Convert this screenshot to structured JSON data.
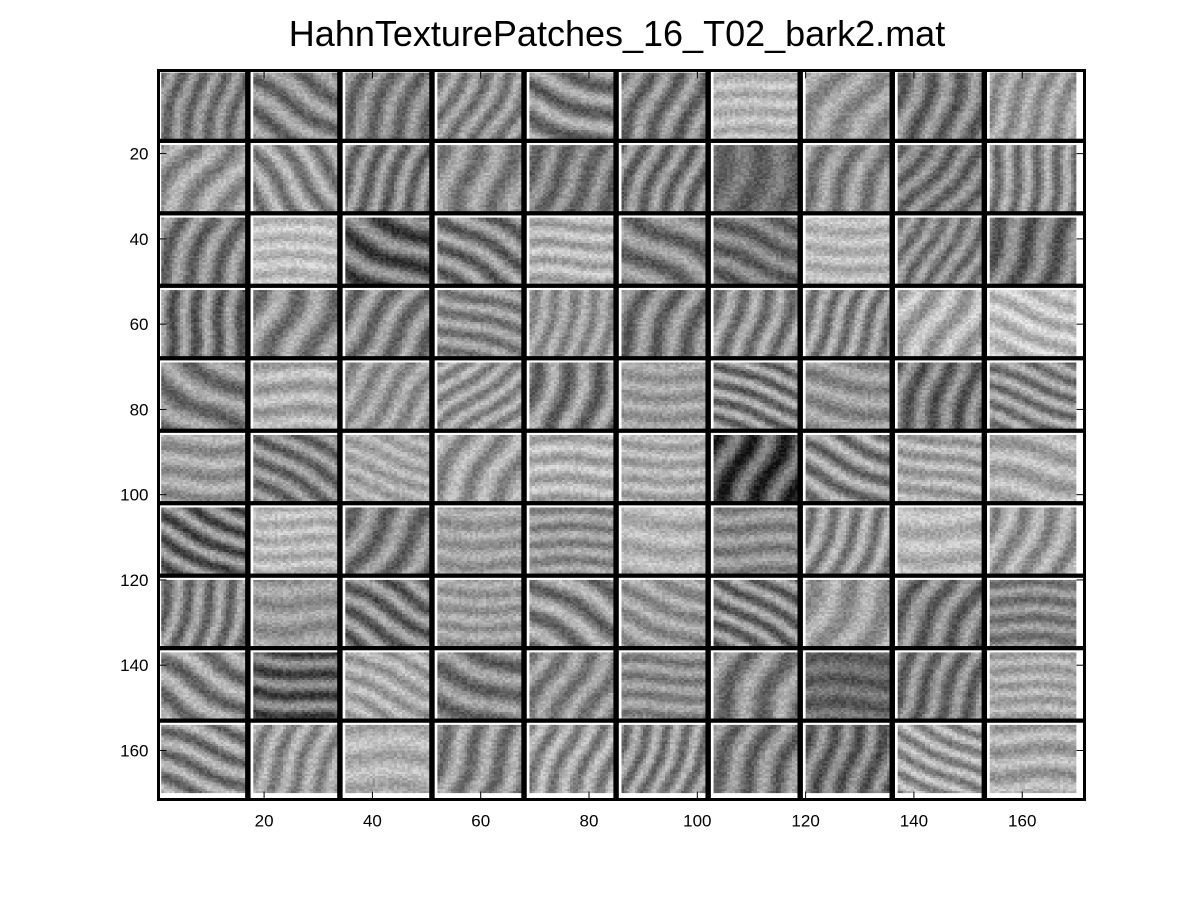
{
  "chart_data": {
    "type": "heatmap",
    "title": "HahnTexturePatches_16_T02_bark2.mat",
    "xlabel": "",
    "ylabel": "",
    "colormap": "gray",
    "grid_rows": 10,
    "grid_cols": 10,
    "patch_size": 16,
    "xlim": [
      0.5,
      171.5
    ],
    "ylim": [
      0.5,
      171.5
    ],
    "y_reversed": true,
    "xticks": [
      20,
      40,
      60,
      80,
      100,
      120,
      140,
      160
    ],
    "yticks": [
      20,
      40,
      60,
      80,
      100,
      120,
      140,
      160
    ],
    "patch_mean_gray": [
      [
        0.5,
        0.52,
        0.5,
        0.55,
        0.52,
        0.5,
        0.72,
        0.6,
        0.48,
        0.62
      ],
      [
        0.6,
        0.58,
        0.5,
        0.55,
        0.48,
        0.5,
        0.42,
        0.55,
        0.48,
        0.55
      ],
      [
        0.5,
        0.75,
        0.4,
        0.5,
        0.7,
        0.5,
        0.45,
        0.72,
        0.52,
        0.45
      ],
      [
        0.48,
        0.55,
        0.52,
        0.55,
        0.6,
        0.5,
        0.55,
        0.55,
        0.68,
        0.75
      ],
      [
        0.52,
        0.68,
        0.6,
        0.6,
        0.52,
        0.62,
        0.52,
        0.58,
        0.45,
        0.55
      ],
      [
        0.62,
        0.5,
        0.66,
        0.62,
        0.7,
        0.68,
        0.3,
        0.55,
        0.66,
        0.68
      ],
      [
        0.45,
        0.72,
        0.5,
        0.62,
        0.58,
        0.7,
        0.55,
        0.58,
        0.72,
        0.62
      ],
      [
        0.52,
        0.6,
        0.48,
        0.62,
        0.55,
        0.6,
        0.5,
        0.62,
        0.48,
        0.52
      ],
      [
        0.55,
        0.4,
        0.66,
        0.5,
        0.55,
        0.56,
        0.52,
        0.4,
        0.48,
        0.66
      ],
      [
        0.55,
        0.6,
        0.7,
        0.55,
        0.6,
        0.55,
        0.5,
        0.45,
        0.62,
        0.66
      ]
    ],
    "patch_contrast": [
      [
        0.5,
        0.6,
        0.5,
        0.5,
        0.7,
        0.6,
        0.3,
        0.4,
        0.6,
        0.4
      ],
      [
        0.5,
        0.6,
        0.6,
        0.5,
        0.5,
        0.6,
        0.3,
        0.5,
        0.5,
        0.6
      ],
      [
        0.6,
        0.3,
        0.8,
        0.7,
        0.4,
        0.6,
        0.5,
        0.3,
        0.5,
        0.6
      ],
      [
        0.7,
        0.6,
        0.6,
        0.5,
        0.4,
        0.6,
        0.6,
        0.6,
        0.5,
        0.4
      ],
      [
        0.6,
        0.4,
        0.4,
        0.5,
        0.7,
        0.3,
        0.7,
        0.4,
        0.6,
        0.6
      ],
      [
        0.4,
        0.6,
        0.3,
        0.5,
        0.4,
        0.3,
        0.8,
        0.7,
        0.4,
        0.4
      ],
      [
        0.8,
        0.3,
        0.6,
        0.3,
        0.4,
        0.3,
        0.4,
        0.6,
        0.3,
        0.5
      ],
      [
        0.6,
        0.3,
        0.7,
        0.3,
        0.7,
        0.4,
        0.7,
        0.4,
        0.6,
        0.4
      ],
      [
        0.7,
        0.7,
        0.4,
        0.6,
        0.5,
        0.4,
        0.6,
        0.3,
        0.6,
        0.3
      ],
      [
        0.7,
        0.5,
        0.3,
        0.6,
        0.6,
        0.6,
        0.6,
        0.6,
        0.6,
        0.4
      ]
    ],
    "patch_orientation": [
      [
        0.2,
        2.2,
        0.3,
        0.4,
        2.0,
        0.3,
        1.5,
        0.5,
        0.2,
        0.3
      ],
      [
        0.5,
        2.6,
        0.3,
        0.2,
        0.4,
        0.3,
        0.2,
        0.3,
        0.6,
        0.1
      ],
      [
        0.3,
        1.6,
        2.1,
        2.2,
        1.6,
        2.2,
        2.0,
        1.6,
        0.4,
        0.3
      ],
      [
        0.1,
        0.3,
        0.5,
        1.9,
        0.2,
        0.3,
        0.2,
        0.3,
        0.4,
        2.0
      ],
      [
        2.2,
        1.6,
        0.5,
        0.8,
        0.2,
        1.6,
        2.0,
        1.8,
        0.2,
        2.0
      ],
      [
        1.6,
        2.2,
        2.0,
        0.4,
        1.6,
        1.6,
        0.3,
        2.1,
        1.8,
        1.8
      ],
      [
        2.1,
        1.6,
        0.5,
        1.6,
        1.6,
        1.6,
        1.6,
        0.3,
        1.6,
        0.3
      ],
      [
        0.2,
        1.6,
        2.2,
        1.6,
        2.2,
        2.0,
        2.2,
        0.4,
        0.4,
        1.6
      ],
      [
        2.2,
        1.7,
        2.1,
        2.0,
        0.4,
        1.6,
        0.3,
        1.6,
        0.3,
        1.6
      ],
      [
        2.0,
        0.3,
        1.6,
        0.3,
        0.3,
        0.3,
        0.3,
        0.2,
        2.1,
        1.6
      ]
    ]
  }
}
